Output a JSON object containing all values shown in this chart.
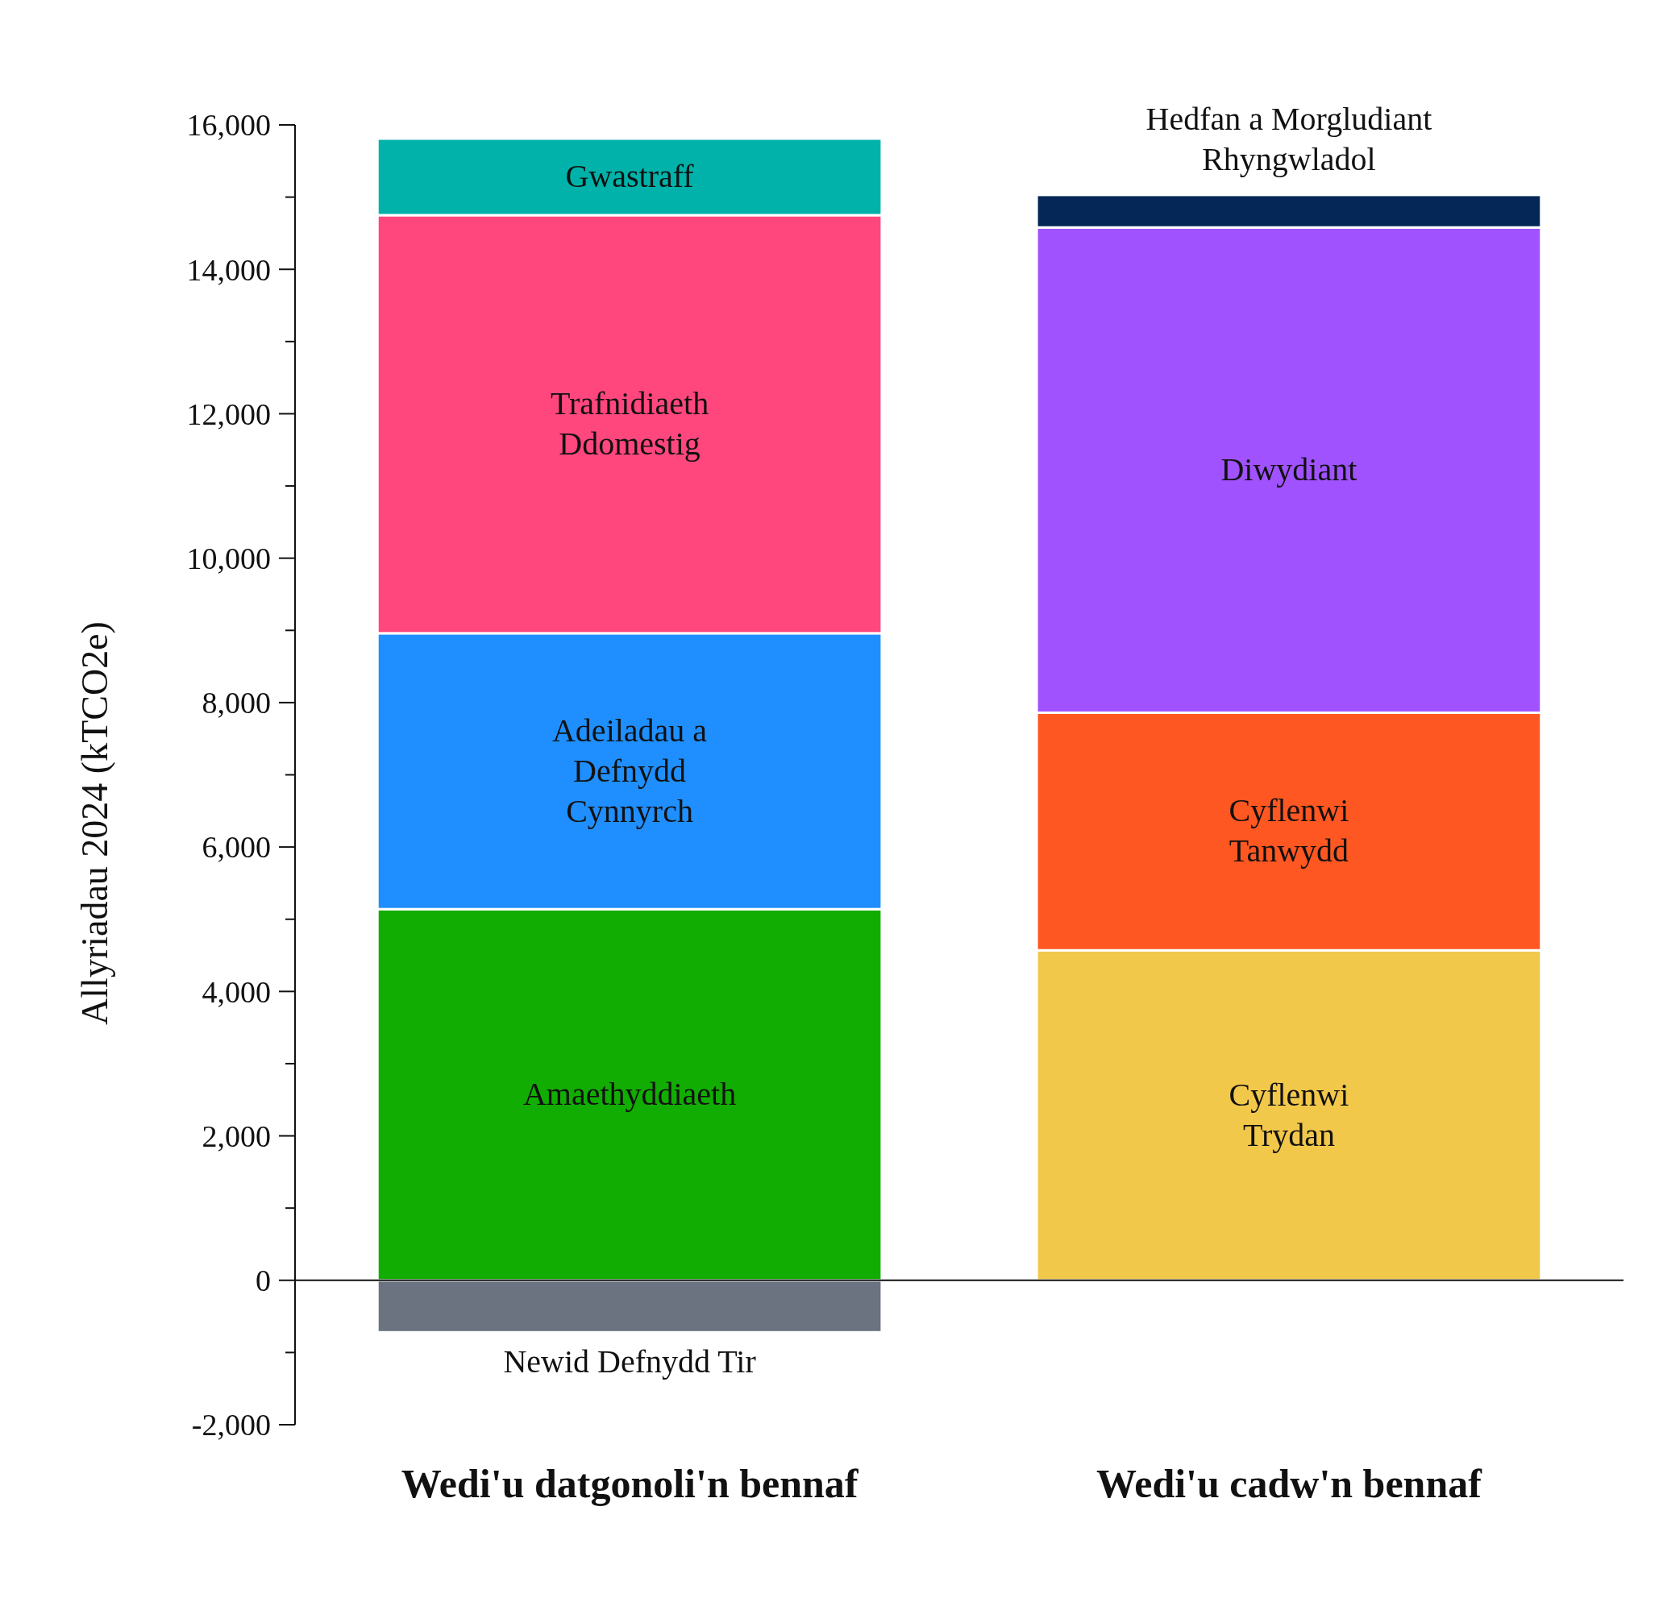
{
  "chart_data": {
    "type": "bar",
    "stacked": true,
    "ylabel": "Allyriadau 2024 (kTCO2e)",
    "categories": [
      "Wedi'u datgonoli'n bennaf",
      "Wedi'u cadw'n bennaf"
    ],
    "ylim": [
      -2000,
      16000
    ],
    "yticks": [
      {
        "value": -2000,
        "label": "-2,000"
      },
      {
        "value": -1000,
        "label": null
      },
      {
        "value": 0,
        "label": "0"
      },
      {
        "value": 1000,
        "label": null
      },
      {
        "value": 2000,
        "label": "2,000"
      },
      {
        "value": 3000,
        "label": null
      },
      {
        "value": 4000,
        "label": "4,000"
      },
      {
        "value": 5000,
        "label": null
      },
      {
        "value": 6000,
        "label": "6,000"
      },
      {
        "value": 7000,
        "label": null
      },
      {
        "value": 8000,
        "label": "8,000"
      },
      {
        "value": 9000,
        "label": null
      },
      {
        "value": 10000,
        "label": "10,000"
      },
      {
        "value": 11000,
        "label": null
      },
      {
        "value": 12000,
        "label": "12,000"
      },
      {
        "value": 13000,
        "label": null
      },
      {
        "value": 14000,
        "label": "14,000"
      },
      {
        "value": 15000,
        "label": null
      },
      {
        "value": 16000,
        "label": "16,000"
      }
    ],
    "series": [
      {
        "name": "Newid Defnydd Tir",
        "color": "#6b7280",
        "values": [
          -720,
          null
        ]
      },
      {
        "name": "Amaethyddiaeth",
        "color": "#12ad03",
        "values": [
          5140,
          null
        ]
      },
      {
        "name": "Adeiladau a\nDefnydd\nCynnyrch",
        "color": "#1f8fff",
        "values": [
          3820,
          null
        ]
      },
      {
        "name": "Trafnidiaeth\nDdomestig",
        "color": "#ff477e",
        "values": [
          5790,
          null
        ]
      },
      {
        "name": "Gwastraff",
        "color": "#00b2a9",
        "values": [
          1060,
          null
        ]
      },
      {
        "name": "Cyflenwi\nTrydan",
        "color": "#f2c84b",
        "values": [
          null,
          4570
        ]
      },
      {
        "name": "Cyflenwi\nTanwydd",
        "color": "#ff5722",
        "values": [
          null,
          3290
        ]
      },
      {
        "name": "Diwydiant",
        "color": "#a052ff",
        "values": [
          null,
          6720
        ]
      },
      {
        "name": "Hedfan a Morgludiant\nRhyngwladol",
        "color": "#052757",
        "values": [
          null,
          450
        ]
      }
    ]
  }
}
